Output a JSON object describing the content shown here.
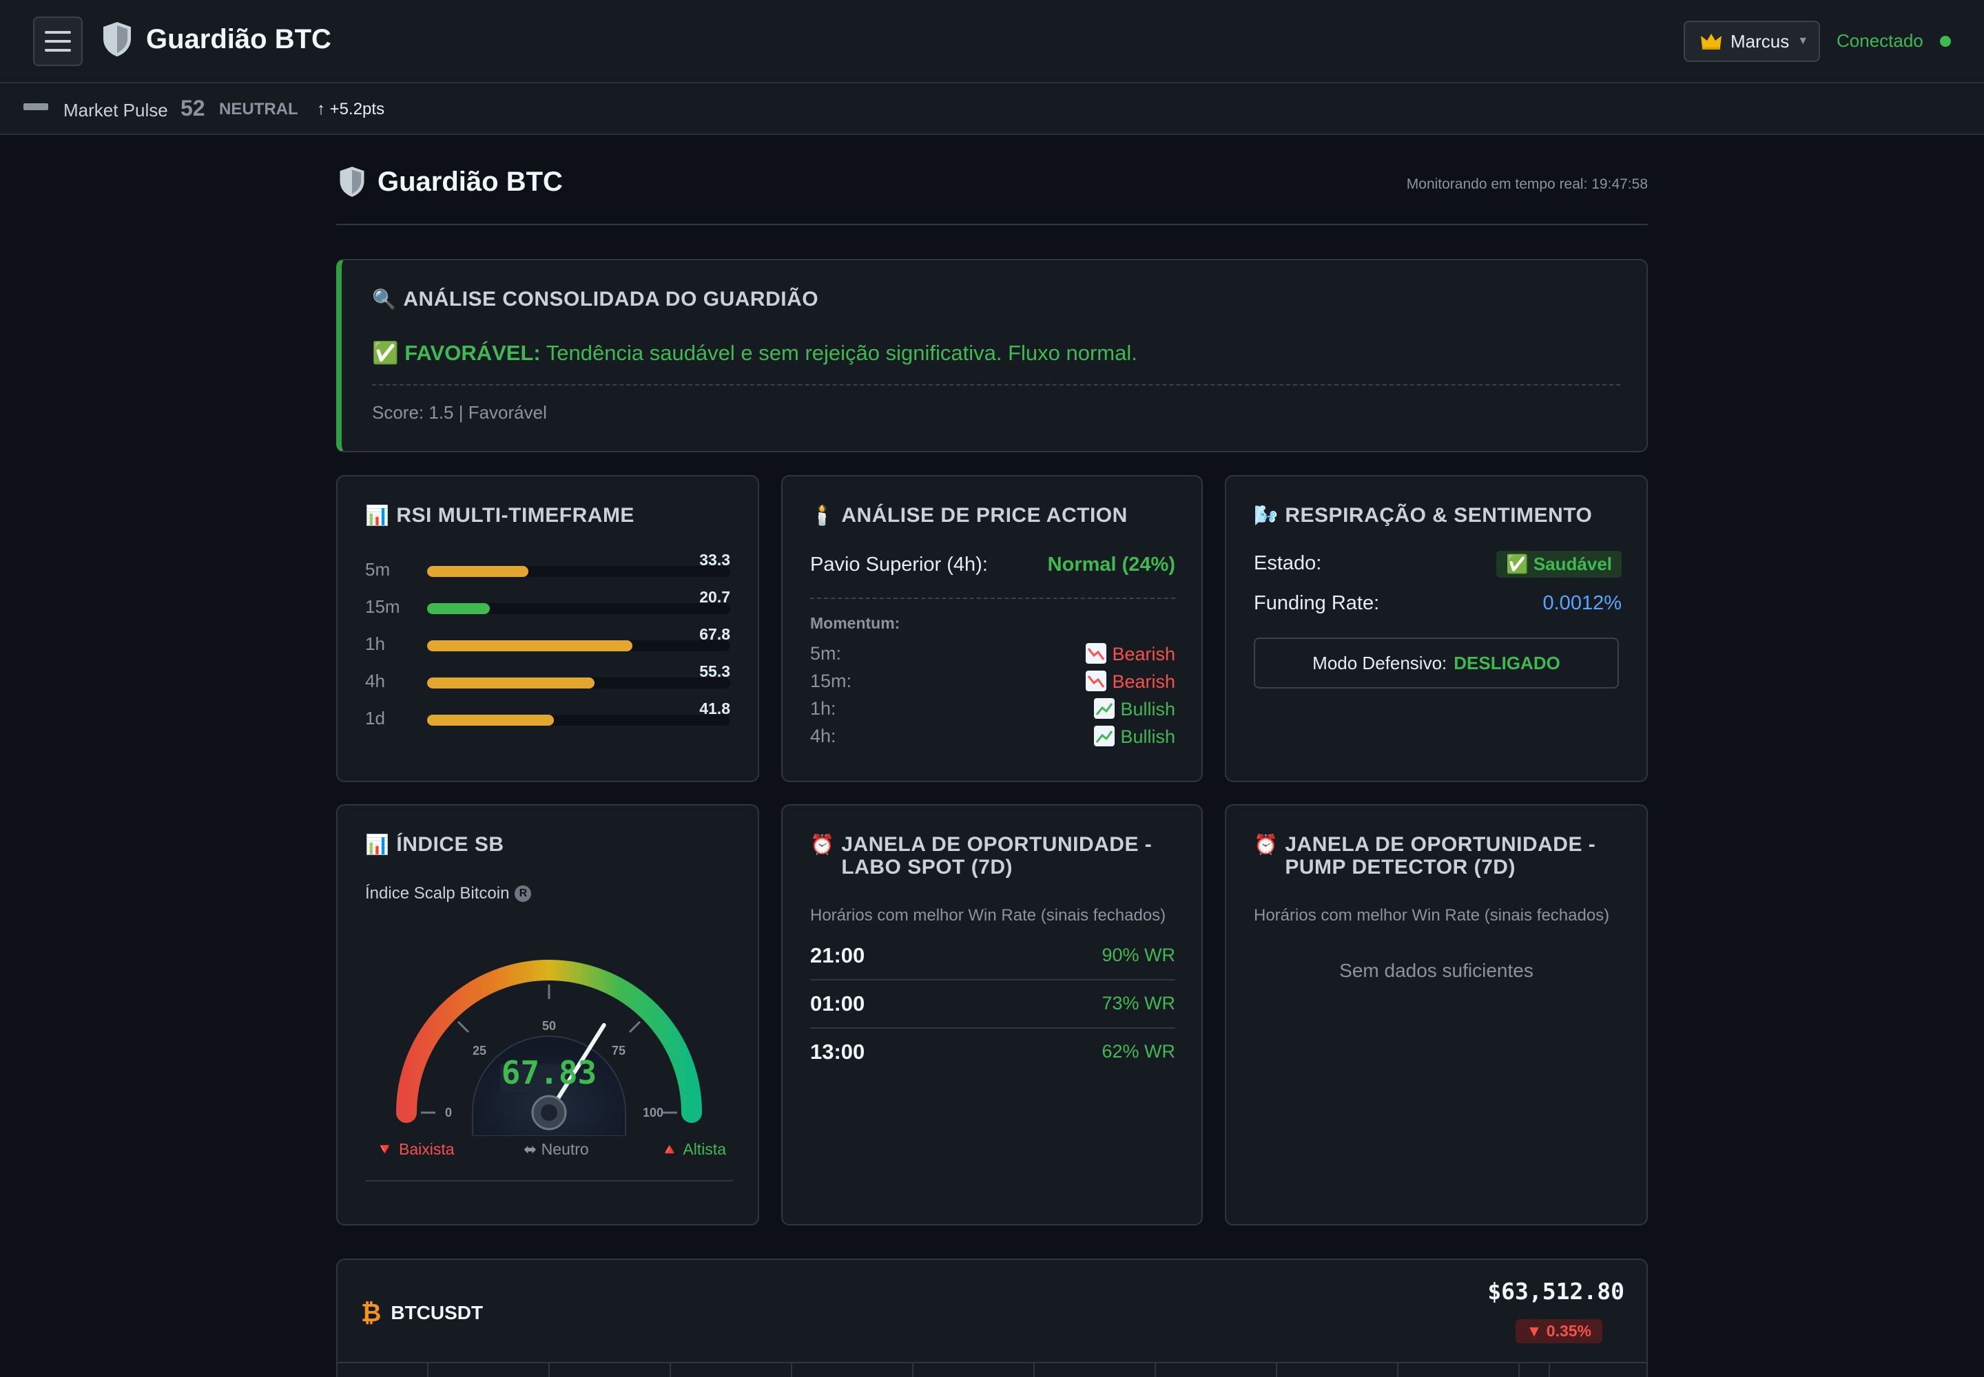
{
  "topbar": {
    "brand": "Guardião BTC",
    "user": "Marcus",
    "status": "Conectado"
  },
  "pulse": {
    "label": "Market Pulse",
    "value": "52",
    "state": "NEUTRAL",
    "change": "↑ +5.2pts"
  },
  "page": {
    "title": "Guardião BTC",
    "monitor": "Monitorando em tempo real: 19:47:58"
  },
  "consolidated": {
    "title": "ANÁLISE CONSOLIDADA DO GUARDIÃO",
    "verdict_label": "✅ FAVORÁVEL:",
    "verdict_text": "Tendência saudável e sem rejeição significativa. Fluxo normal.",
    "score": "Score: 1.5 | Favorável"
  },
  "rsi": {
    "title": "RSI MULTI-TIMEFRAME",
    "rows": [
      {
        "tf": "5m",
        "value": "33.3",
        "level": 33.3,
        "color": "#e3a72f"
      },
      {
        "tf": "15m",
        "value": "20.7",
        "level": 20.7,
        "color": "#3fb950"
      },
      {
        "tf": "1h",
        "value": "67.8",
        "level": 67.8,
        "color": "#e3a72f"
      },
      {
        "tf": "4h",
        "value": "55.3",
        "level": 55.3,
        "color": "#e3a72f"
      },
      {
        "tf": "1d",
        "value": "41.8",
        "level": 41.8,
        "color": "#e3a72f"
      }
    ]
  },
  "price_action": {
    "title": "ANÁLISE DE PRICE ACTION",
    "wick_label": "Pavio Superior (4h):",
    "wick_value": "Normal (24%)",
    "momentum_label": "Momentum:",
    "momentum": [
      {
        "tf": "5m:",
        "trend": "Bearish"
      },
      {
        "tf": "15m:",
        "trend": "Bearish"
      },
      {
        "tf": "1h:",
        "trend": "Bullish"
      },
      {
        "tf": "4h:",
        "trend": "Bullish"
      }
    ]
  },
  "sentiment": {
    "title": "RESPIRAÇÃO & SENTIMENTO",
    "state_label": "Estado:",
    "state_value": "✅ Saudável",
    "funding_label": "Funding Rate:",
    "funding_value": "0.0012%",
    "defensive_label": "Modo Defensivo:",
    "defensive_value": "DESLIGADO"
  },
  "sb_index": {
    "title": "ÍNDICE SB",
    "subtitle": "Índice Scalp Bitcoin",
    "info_glyph": "R",
    "value": "67.83",
    "value_num": 67.83,
    "ticks": [
      "0",
      "25",
      "50",
      "75",
      "100"
    ],
    "legend": {
      "bear": "🔻 Baixista",
      "neutral": "⬌ Neutro",
      "bull": "🔺 Altista"
    }
  },
  "opportunity_spot": {
    "title": "JANELA DE OPORTUNIDADE - LABO SPOT (7D)",
    "subtitle": "Horários com melhor Win Rate (sinais fechados)",
    "rows": [
      {
        "time": "21:00",
        "wr": "90% WR"
      },
      {
        "time": "01:00",
        "wr": "73% WR"
      },
      {
        "time": "13:00",
        "wr": "62% WR"
      }
    ]
  },
  "opportunity_pump": {
    "title": "JANELA DE OPORTUNIDADE - PUMP DETECTOR (7D)",
    "subtitle": "Horários com melhor Win Rate (sinais fechados)",
    "empty": "Sem dados suficientes"
  },
  "ticker": {
    "coin": "₿",
    "symbol": "BTCUSDT",
    "price": "$63,512.80",
    "change": "▼ 0.35%"
  },
  "colors": {
    "green": "#3fb950",
    "red": "#f85149",
    "amber": "#e3a72f",
    "blue": "#58a6ff",
    "bg": "#0d1117",
    "card": "#161b22"
  }
}
